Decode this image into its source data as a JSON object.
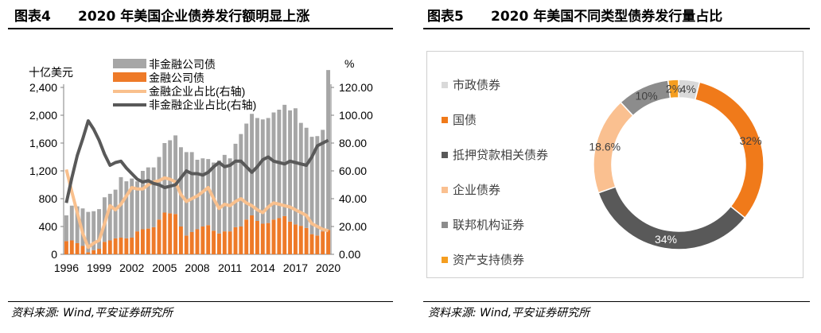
{
  "left_panel": {
    "fig_no": "图表4",
    "title": "2020 年美国企业债券发行额明显上涨",
    "source": "资料来源: Wind,平安证券研究所"
  },
  "right_panel": {
    "fig_no": "图表5",
    "title": "2020 年美国不同类型债券发行量占比",
    "source": "资料来源: Wind,平安证券研究所"
  },
  "chart_data": [
    {
      "type": "bar",
      "stacked": true,
      "ylabel_left": "十亿美元",
      "ylabel_right": "%",
      "ylim_left": [
        0,
        2400
      ],
      "ylim_right": [
        0,
        120
      ],
      "yticks_left": [
        "0",
        "400",
        "800",
        "1,200",
        "1,600",
        "2,000",
        "2,400"
      ],
      "yticks_right": [
        "0.00",
        "20.00",
        "40.00",
        "60.00",
        "80.00",
        "100.00",
        "120.00"
      ],
      "xticks": [
        "1996",
        "1999",
        "2002",
        "2005",
        "2008",
        "2011",
        "2014",
        "2017",
        "2020"
      ],
      "x": [
        1996,
        1996.5,
        1997,
        1997.5,
        1998,
        1998.5,
        1999,
        1999.5,
        2000,
        2000.5,
        2001,
        2001.5,
        2002,
        2002.5,
        2003,
        2003.5,
        2004,
        2004.5,
        2005,
        2005.5,
        2006,
        2006.5,
        2007,
        2007.5,
        2008,
        2008.5,
        2009,
        2009.5,
        2010,
        2010.5,
        2011,
        2011.5,
        2012,
        2012.5,
        2013,
        2013.5,
        2014,
        2014.5,
        2015,
        2015.5,
        2016,
        2016.5,
        2017,
        2017.5,
        2018,
        2018.5,
        2019,
        2019.5,
        2020
      ],
      "legend_position": "top-left",
      "bar_series": [
        {
          "name": "非金融公司债",
          "color": "#a6a6a6",
          "values": [
            370,
            500,
            530,
            540,
            580,
            560,
            570,
            640,
            670,
            700,
            870,
            820,
            850,
            720,
            840,
            880,
            860,
            900,
            1000,
            1050,
            1130,
            1140,
            1200,
            1150,
            1000,
            980,
            950,
            980,
            1050,
            1100,
            1050,
            1200,
            1330,
            1380,
            1460,
            1480,
            1500,
            1510,
            1540,
            1560,
            1600,
            1600,
            1670,
            1480,
            1440,
            1400,
            1430,
            1460,
            2300
          ]
        },
        {
          "name": "金融公司债",
          "color": "#ee7a28",
          "values": [
            190,
            200,
            160,
            120,
            30,
            60,
            80,
            180,
            200,
            230,
            240,
            230,
            240,
            330,
            360,
            370,
            390,
            500,
            600,
            590,
            580,
            400,
            270,
            320,
            360,
            400,
            420,
            340,
            300,
            330,
            330,
            390,
            400,
            500,
            560,
            480,
            440,
            450,
            500,
            520,
            550,
            470,
            430,
            410,
            380,
            290,
            270,
            330,
            350
          ]
        }
      ],
      "line_series": [
        {
          "name": "金融企业占比(右轴)",
          "color": "#f9c08d",
          "values": [
            61,
            45,
            30,
            15,
            5,
            8,
            10,
            22,
            35,
            32,
            36,
            42,
            48,
            47,
            47,
            50,
            52,
            53,
            55,
            54,
            52,
            43,
            38,
            40,
            42,
            45,
            48,
            40,
            33,
            36,
            35,
            38,
            40,
            37,
            35,
            32,
            30,
            34,
            37,
            36,
            35,
            34,
            32,
            30,
            28,
            22,
            20,
            18,
            17
          ]
        },
        {
          "name": "非金融企业占比(右轴)",
          "color": "#595959",
          "values": [
            37,
            55,
            71,
            83,
            96,
            90,
            82,
            72,
            64,
            66,
            67,
            62,
            58,
            54,
            52,
            53,
            51,
            50,
            48,
            49,
            50,
            55,
            60,
            58,
            58,
            57,
            59,
            63,
            66,
            63,
            64,
            67,
            67,
            63,
            59,
            63,
            68,
            70,
            67,
            66,
            65,
            67,
            66,
            65,
            64,
            70,
            78,
            80,
            82
          ]
        }
      ]
    },
    {
      "type": "pie",
      "donut": true,
      "legend_position": "left",
      "slices": [
        {
          "name": "市政债券",
          "value": 4,
          "label": "4%",
          "color": "#d9d9d9"
        },
        {
          "name": "国债",
          "value": 32,
          "label": "32%",
          "color": "#f07a1a"
        },
        {
          "name": "抵押贷款相关债券",
          "value": 34,
          "label": "34%",
          "color": "#595959"
        },
        {
          "name": "企业债券",
          "value": 18.6,
          "label": "18.6%",
          "color": "#fac090"
        },
        {
          "name": "联邦机构证券",
          "value": 10,
          "label": "10%",
          "color": "#8c8c8c"
        },
        {
          "name": "资产支持债券",
          "value": 2,
          "label": "2%",
          "color": "#f59e20"
        }
      ]
    }
  ]
}
